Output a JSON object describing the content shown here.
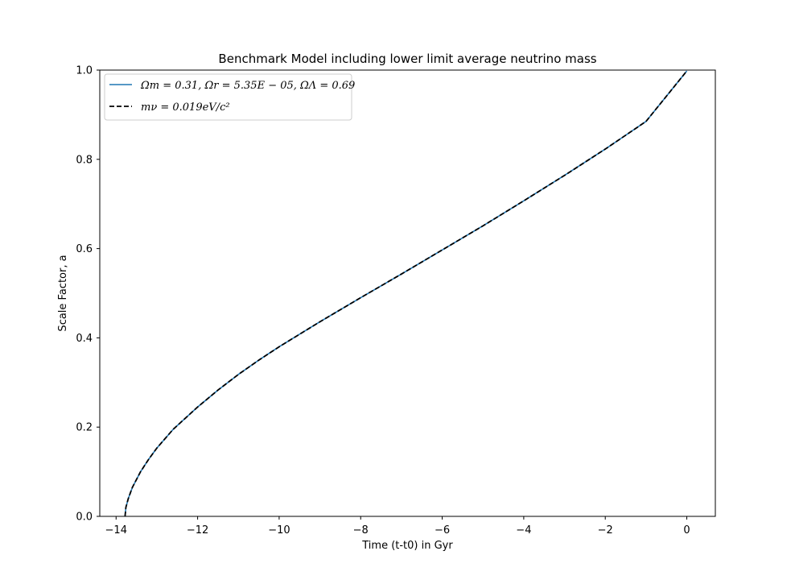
{
  "chart_data": {
    "type": "line",
    "title": "Benchmark Model including lower limit average neutrino mass",
    "xlabel": "Time (t-t0) in Gyr",
    "ylabel": "Scale Factor, a",
    "xlim": [
      -14.4,
      0.7
    ],
    "ylim": [
      0.0,
      1.0
    ],
    "xticks": [
      -14,
      -12,
      -10,
      -8,
      -6,
      -4,
      -2,
      0
    ],
    "yticks": [
      0.0,
      0.2,
      0.4,
      0.6,
      0.8,
      1.0
    ],
    "xtick_labels": [
      "−14",
      "−12",
      "−10",
      "−8",
      "−6",
      "−4",
      "−2",
      "0"
    ],
    "ytick_labels": [
      "0.0",
      "0.2",
      "0.4",
      "0.6",
      "0.8",
      "1.0"
    ],
    "grid": false,
    "legend_position": "top-left",
    "series": [
      {
        "name": "Ωm = 0.31, Ωr = 5.35E − 05, ΩΛ = 0.69",
        "color": "#1f77b4",
        "style": "solid",
        "x": [
          -13.78,
          -13.76,
          -13.7,
          -13.6,
          -13.4,
          -13.2,
          -13.0,
          -12.6,
          -12.0,
          -11.5,
          -11.0,
          -10.5,
          -10.0,
          -9.0,
          -8.0,
          -7.0,
          -6.0,
          -5.0,
          -4.0,
          -3.0,
          -2.0,
          -1.0,
          0.0
        ],
        "y": [
          0.0,
          0.02,
          0.04,
          0.065,
          0.1,
          0.128,
          0.153,
          0.195,
          0.245,
          0.283,
          0.318,
          0.35,
          0.38,
          0.436,
          0.49,
          0.543,
          0.597,
          0.651,
          0.707,
          0.764,
          0.823,
          0.885,
          0.998
        ]
      },
      {
        "name": "mν = 0.019eV/c²",
        "color": "#000000",
        "style": "dashed",
        "x": [
          -13.78,
          -13.76,
          -13.7,
          -13.6,
          -13.4,
          -13.2,
          -13.0,
          -12.6,
          -12.0,
          -11.5,
          -11.0,
          -10.5,
          -10.0,
          -9.0,
          -8.0,
          -7.0,
          -6.0,
          -5.0,
          -4.0,
          -3.0,
          -2.0,
          -1.0,
          0.0
        ],
        "y": [
          0.0,
          0.02,
          0.04,
          0.065,
          0.1,
          0.128,
          0.153,
          0.195,
          0.245,
          0.283,
          0.318,
          0.35,
          0.38,
          0.436,
          0.49,
          0.543,
          0.597,
          0.651,
          0.707,
          0.764,
          0.823,
          0.885,
          0.998
        ]
      }
    ]
  }
}
